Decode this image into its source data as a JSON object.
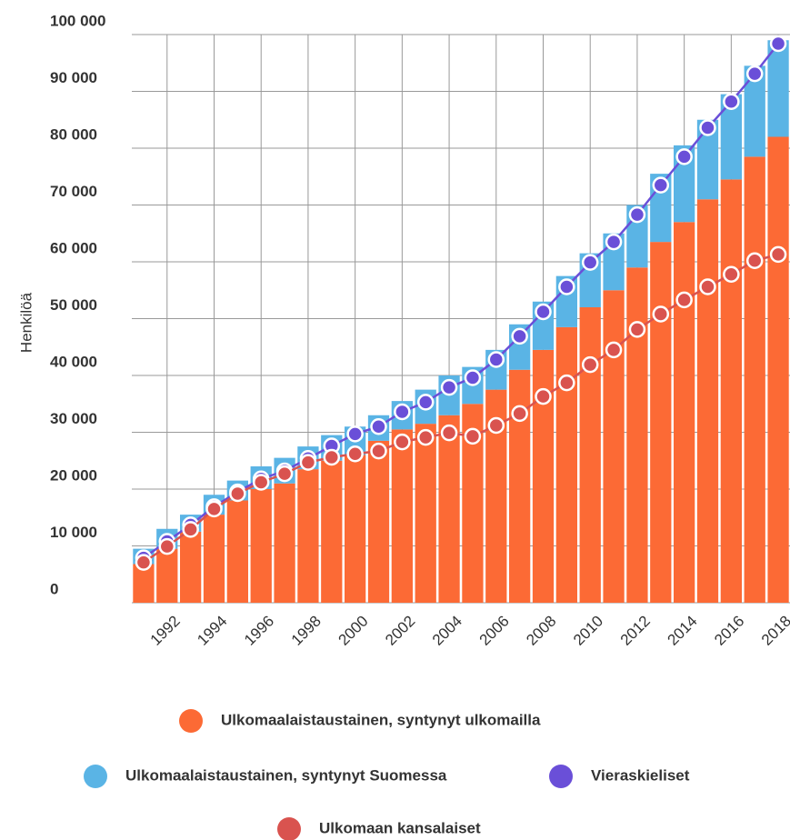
{
  "chart_data": {
    "type": "bar",
    "stacked": true,
    "y_label": "Henkilöä",
    "categories": [
      null,
      "1992",
      null,
      "1994",
      null,
      "1996",
      null,
      "1998",
      null,
      "2000",
      null,
      "2002",
      null,
      "2004",
      null,
      "2006",
      null,
      "2008",
      null,
      "2010",
      null,
      "2012",
      null,
      "2014",
      null,
      "2016",
      null,
      "2018"
    ],
    "series": [
      {
        "name": "Ulkomaalaistaustainen, syntynyt ulkomailla",
        "type": "bar",
        "color": "#fc6a35",
        "values": [
          6800,
          9500,
          12500,
          15500,
          18000,
          20000,
          21000,
          23500,
          25000,
          26000,
          28500,
          30500,
          31500,
          33000,
          35000,
          37500,
          41000,
          44500,
          48500,
          52000,
          55000,
          59000,
          63500,
          67000,
          71000,
          74500,
          78500,
          82000
        ]
      },
      {
        "name": "Ulkomaalaistaustainen, syntynyt Suomessa",
        "type": "bar",
        "color": "#5ab4e5",
        "values": [
          2700,
          3500,
          3000,
          3500,
          3500,
          4000,
          4500,
          4000,
          4500,
          5000,
          4500,
          5000,
          6000,
          7000,
          6500,
          7000,
          8000,
          8500,
          9000,
          9500,
          10000,
          11000,
          12000,
          13500,
          14000,
          15000,
          16000,
          17000
        ]
      },
      {
        "name": "Vieraskieliset",
        "type": "line",
        "color": "#6a4fd8",
        "values": [
          7900,
          10800,
          13700,
          16900,
          19500,
          21800,
          23200,
          25400,
          27600,
          29700,
          31000,
          33600,
          35300,
          37900,
          39600,
          42800,
          46900,
          51200,
          55600,
          59900,
          63500,
          68300,
          73500,
          78500,
          83600,
          88200,
          93100,
          98400
        ]
      },
      {
        "name": "Ulkomaan kansalaiset",
        "type": "line",
        "color": "#d9534f",
        "values": [
          7100,
          9900,
          12900,
          16500,
          19200,
          21200,
          22700,
          24700,
          25600,
          26200,
          26700,
          28300,
          29100,
          29900,
          29300,
          31200,
          33300,
          36300,
          38700,
          41900,
          44500,
          48100,
          50800,
          53300,
          55600,
          57800,
          60200,
          61300
        ]
      }
    ],
    "ylim": [
      0,
      100000
    ],
    "yticks": [
      0,
      {
        "value": 10000,
        "label": "10 000"
      },
      {
        "value": 20000,
        "label": "20 000"
      },
      {
        "value": 30000,
        "label": "30 000"
      },
      {
        "value": 40000,
        "label": "40 000"
      },
      {
        "value": 50000,
        "label": "50 000"
      },
      {
        "value": 60000,
        "label": "60 000"
      },
      {
        "value": 70000,
        "label": "70 000"
      },
      {
        "value": 80000,
        "label": "80 000"
      },
      {
        "value": 90000,
        "label": "90 000"
      },
      {
        "value": 100000,
        "label": "100 000"
      }
    ],
    "grid": true
  }
}
